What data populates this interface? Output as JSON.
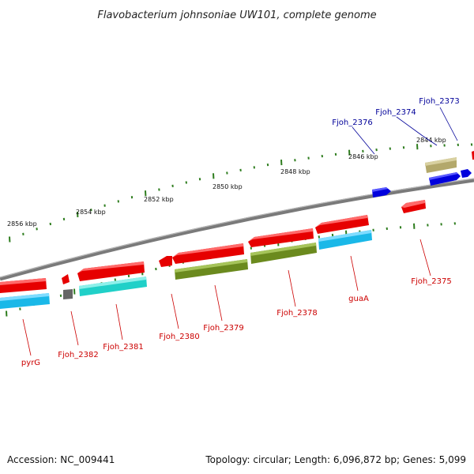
{
  "title": "Flavobacterium johnsoniae UW101, complete genome",
  "footer": {
    "accession": "Accession: NC_009441",
    "summary": "Topology: circular; Length: 6,096,872 bp; Genes: 5,099"
  },
  "ruler_labels": [
    "2844 kbp",
    "2846 kbp",
    "2848 kbp",
    "2850 kbp",
    "2852 kbp",
    "2854 kbp",
    "2856 kbp"
  ],
  "gene_labels": {
    "top": [
      "Fjoh_2373",
      "Fjoh_2374",
      "Fjoh_2376"
    ],
    "bottom": [
      "pyrG",
      "Fjoh_2382",
      "Fjoh_2381",
      "Fjoh_2380",
      "Fjoh_2379",
      "Fjoh_2378",
      "guaA",
      "Fjoh_2375"
    ]
  },
  "colors": {
    "backbone": "#808080",
    "feature_red": "#e60000",
    "feature_cyan": "#1ab8e8",
    "feature_olive_green": "#6b8a1e",
    "feature_khaki": "#b3a86b",
    "feature_blue": "#0000dd",
    "feature_teal": "#20d0c8",
    "feature_gray": "#666666",
    "label_red": "#cc0000",
    "label_blue": "#000099",
    "tick_green": "#2e7d1e"
  }
}
